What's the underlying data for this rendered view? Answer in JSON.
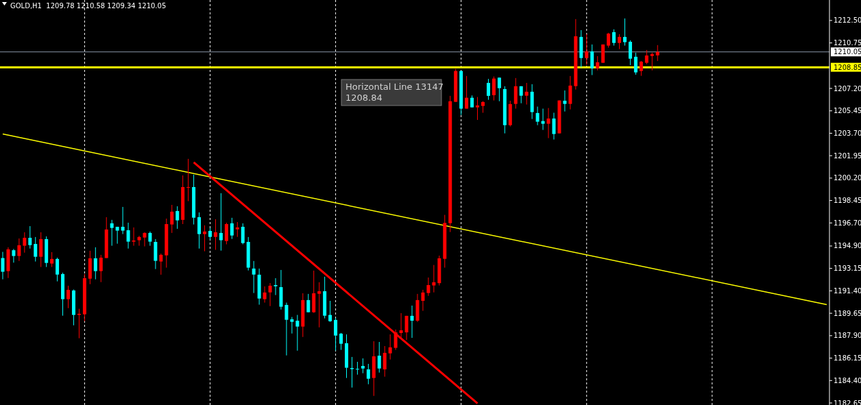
{
  "chart_data": {
    "type": "candlestick",
    "title": "GOLD,H1  1209.78 1210.58 1209.34 1210.05",
    "grid": "x",
    "categories": [
      null,
      null,
      null,
      null,
      null,
      null,
      null,
      null,
      null,
      null,
      null,
      null,
      null,
      null,
      null,
      null,
      null,
      null,
      null,
      null,
      null,
      null,
      null,
      null,
      null,
      null,
      null,
      null,
      null,
      null,
      null,
      null,
      null,
      null,
      null,
      null,
      null,
      null,
      null,
      null,
      null,
      null,
      null,
      null,
      null,
      null,
      null,
      null,
      null,
      null,
      null,
      null,
      null,
      null,
      null,
      null,
      null,
      null,
      null,
      null,
      null,
      null,
      null,
      null,
      null,
      null,
      null,
      null,
      null,
      null,
      null,
      null,
      null,
      null,
      null,
      null,
      null,
      null,
      null,
      null,
      null,
      null,
      null,
      null,
      null,
      null,
      null,
      null,
      null,
      null,
      null,
      null,
      null,
      null,
      null,
      null,
      null,
      null,
      null,
      null,
      null,
      null,
      null,
      null,
      null,
      null,
      null,
      null,
      null,
      null,
      null,
      null,
      null,
      null,
      null,
      null,
      null,
      null,
      null,
      null,
      null,
      null,
      null,
      null,
      null,
      null,
      null,
      null,
      null,
      null,
      null,
      null,
      null,
      null,
      null,
      null,
      null,
      null,
      null,
      null,
      null,
      null,
      null,
      null,
      null,
      null,
      null,
      null,
      null,
      null,
      null,
      null
    ],
    "ylim": [
      1182.49,
      1214.1
    ],
    "yticks": [
      {
        "value": 1182.65,
        "label": "1182.65"
      },
      {
        "value": 1184.4,
        "label": "1184.40"
      },
      {
        "value": 1186.15,
        "label": "1186.15"
      },
      {
        "value": 1187.9,
        "label": "1187.90"
      },
      {
        "value": 1189.65,
        "label": "1189.65"
      },
      {
        "value": 1191.4,
        "label": "1191.40"
      },
      {
        "value": 1193.15,
        "label": "1193.15"
      },
      {
        "value": 1194.9,
        "label": "1194.90"
      },
      {
        "value": 1196.7,
        "label": "1196.70"
      },
      {
        "value": 1198.45,
        "label": "1198.45"
      },
      {
        "value": 1200.2,
        "label": "1200.20"
      },
      {
        "value": 1201.95,
        "label": "1201.95"
      },
      {
        "value": 1203.7,
        "label": "1203.70"
      },
      {
        "value": 1205.45,
        "label": "1205.45"
      },
      {
        "value": 1207.2,
        "label": "1207.20"
      },
      {
        "value": 1210.75,
        "label": "1210.75"
      },
      {
        "value": 1212.5,
        "label": "1212.50"
      }
    ],
    "colors": [
      "#00ffff",
      "#ff0000",
      "#00ffff",
      "#ff0000",
      "#ff0000",
      "#00ffff",
      "#00ffff",
      "#ff0000",
      "#00ffff",
      "#ff0000",
      "#00ffff",
      "#00ffff",
      "#ff0000",
      "#00ffff",
      "#ff0000",
      "#ff0000",
      "#ff0000",
      "#00ffff",
      "#ff0000",
      "#ff0000",
      "#00ffff",
      "#00ffff",
      "#00ffff",
      "#00ffff",
      "#ff0000",
      "#ff0000",
      "#ff0000",
      "#00ffff",
      "#00ffff",
      "#ff0000",
      "#ff0000",
      "#ff0000",
      "#00ffff",
      "#ff0000",
      "#ff0000",
      "#00ffff",
      "#00ffff",
      "#ff0000",
      "#00ffff",
      "#ff0000",
      "#00ffff",
      "#ff0000",
      "#00ffff",
      "#ff0000",
      "#00ffff",
      "#00ffff",
      "#00ffff",
      "#00ffff",
      "#ff0000",
      "#ff0000",
      "#00ffff",
      "#00ffff",
      "#00ffff",
      "#00ffff",
      "#00ffff",
      "#ff0000",
      "#00ffff",
      "#ff0000",
      "#ff0000",
      "#00ffff",
      "#00ffff",
      "#00ffff",
      "#00ffff",
      "#00ffff",
      "#00ffff",
      "#00ffff",
      "#00ffff",
      "#00ffff",
      "#ff0000",
      "#00ffff",
      "#ff0000",
      "#ff0000",
      "#ff0000",
      "#ff0000",
      "#ff0000",
      "#00ffff",
      "#ff0000",
      "#ff0000",
      "#ff0000",
      "#ff0000",
      "#ff0000",
      "#ff0000",
      "#ff0000",
      "#ff0000",
      "#00ffff",
      "#ff0000",
      "#00ffff",
      "#ff0000",
      "#ff0000",
      "#00ffff",
      "#ff0000",
      "#00ffff",
      "#00ffff",
      "#ff0000",
      "#ff0000",
      "#00ffff",
      "#ff0000",
      "#00ffff",
      "#00ffff",
      "#00ffff",
      "#ff0000",
      "#00ffff",
      "#ff0000",
      "#00ffff",
      "#ff0000",
      "#ff0000",
      "#00ffff",
      "#ff0000",
      "#00ffff",
      "#ff0000",
      "#ff0000",
      "#ff0000",
      "#00ffff",
      "#ff0000",
      "#00ffff",
      "#00ffff",
      "#00ffff",
      "#ff0000",
      "#ff0000",
      "#ff0000",
      "#ff0000",
      null,
      null,
      null,
      null,
      null,
      null,
      null,
      null,
      null,
      null,
      null,
      null,
      null,
      null,
      null,
      null,
      null,
      null,
      null,
      null,
      null,
      null,
      null,
      null,
      null,
      null,
      null,
      null,
      null,
      null,
      null
    ],
    "ohlc": [
      [
        1193.96,
        1194.44,
        1192.3,
        1192.89
      ],
      [
        1192.94,
        1194.8,
        1192.4,
        1194.64
      ],
      [
        1194.57,
        1194.67,
        1193.6,
        1194.12
      ],
      [
        1194.12,
        1195.49,
        1193.73,
        1194.96
      ],
      [
        1194.92,
        1195.97,
        1194.38,
        1195.54
      ],
      [
        1195.54,
        1196.45,
        1194.7,
        1194.97
      ],
      [
        1195.06,
        1195.6,
        1193.69,
        1194.06
      ],
      [
        1194.06,
        1195.97,
        1193.26,
        1195.44
      ],
      [
        1195.44,
        1195.65,
        1193.26,
        1193.58
      ],
      [
        1193.53,
        1194.42,
        1193.26,
        1193.89
      ],
      [
        1193.89,
        1193.99,
        1192.14,
        1192.67
      ],
      [
        1192.71,
        1192.82,
        1189.46,
        1190.75
      ],
      [
        1190.75,
        1191.8,
        1190.05,
        1191.48
      ],
      [
        1191.43,
        1191.5,
        1188.71,
        1189.52
      ],
      [
        1189.52,
        1190.0,
        1187.7,
        1189.61
      ],
      [
        1189.57,
        1192.71,
        1189.03,
        1192.39
      ],
      [
        1192.35,
        1194.53,
        1191.92,
        1193.94
      ],
      [
        1193.94,
        1194.8,
        1192.3,
        1192.94
      ],
      [
        1192.94,
        1194.21,
        1192.08,
        1193.99
      ],
      [
        1193.96,
        1197.15,
        1193.96,
        1196.19
      ],
      [
        1196.67,
        1196.94,
        1194.92,
        1196.31
      ],
      [
        1196.4,
        1196.4,
        1195.08,
        1196.1
      ],
      [
        1196.4,
        1197.95,
        1195.83,
        1196.1
      ],
      [
        1196.13,
        1196.72,
        1194.7,
        1195.24
      ],
      [
        1195.24,
        1196.35,
        1194.92,
        1195.33
      ],
      [
        1195.35,
        1195.7,
        1194.92,
        1195.6
      ],
      [
        1195.56,
        1195.97,
        1194.87,
        1195.92
      ],
      [
        1195.92,
        1196.03,
        1194.92,
        1195.24
      ],
      [
        1195.22,
        1195.44,
        1193.1,
        1193.74
      ],
      [
        1193.69,
        1194.31,
        1192.66,
        1194.21
      ],
      [
        1194.17,
        1197.04,
        1193.21,
        1196.61
      ],
      [
        1196.58,
        1198.11,
        1195.92,
        1197.58
      ],
      [
        1197.63,
        1198.0,
        1196.24,
        1196.9
      ],
      [
        1196.94,
        1200.41,
        1196.61,
        1199.5
      ],
      [
        1199.47,
        1201.7,
        1198.4,
        1199.5
      ],
      [
        1199.5,
        1200.47,
        1196.58,
        1197.11
      ],
      [
        1197.15,
        1197.52,
        1194.7,
        1195.83
      ],
      [
        1195.83,
        1196.51,
        1194.49,
        1196.03
      ],
      [
        1196.08,
        1196.29,
        1195.4,
        1195.61
      ],
      [
        1195.61,
        1196.99,
        1194.6,
        1195.97
      ],
      [
        1195.92,
        1199.02,
        1194.54,
        1195.35
      ],
      [
        1195.29,
        1196.72,
        1195.03,
        1196.61
      ],
      [
        1196.67,
        1197.1,
        1195.45,
        1195.72
      ],
      [
        1196.2,
        1196.77,
        1195.61,
        1196.35
      ],
      [
        1196.4,
        1196.67,
        1195.03,
        1195.13
      ],
      [
        1195.22,
        1195.6,
        1192.99,
        1193.21
      ],
      [
        1193.14,
        1193.73,
        1191.23,
        1192.67
      ],
      [
        1192.66,
        1193.14,
        1190.32,
        1190.8
      ],
      [
        1190.75,
        1191.75,
        1190.48,
        1191.27
      ],
      [
        1191.28,
        1192.01,
        1190.21,
        1191.8
      ],
      [
        1191.85,
        1192.39,
        1191.07,
        1191.76
      ],
      [
        1191.69,
        1193.03,
        1189.94,
        1190.16
      ],
      [
        1190.3,
        1190.48,
        1186.36,
        1189.14
      ],
      [
        1189.18,
        1189.36,
        1188.07,
        1188.98
      ],
      [
        1189.07,
        1189.52,
        1186.73,
        1188.61
      ],
      [
        1188.61,
        1191.21,
        1187.8,
        1190.68
      ],
      [
        1190.68,
        1191.16,
        1189.73,
        1189.73
      ],
      [
        1189.73,
        1192.98,
        1189.68,
        1191.21
      ],
      [
        1191.17,
        1192.07,
        1188.55,
        1191.37
      ],
      [
        1191.37,
        1192.5,
        1189.25,
        1189.46
      ],
      [
        1189.52,
        1190.62,
        1188.98,
        1189.03
      ],
      [
        1189.13,
        1189.29,
        1186.73,
        1187.91
      ],
      [
        1188.06,
        1188.11,
        1186.79,
        1187.27
      ],
      [
        1187.31,
        1188.0,
        1184.6,
        1185.4
      ],
      [
        1185.37,
        1186.24,
        1183.85,
        1185.29
      ],
      [
        1185.31,
        1185.86,
        1184.86,
        1185.26
      ],
      [
        1185.54,
        1186.13,
        1184.97,
        1185.34
      ],
      [
        1185.27,
        1185.7,
        1184.11,
        1184.54
      ],
      [
        1184.6,
        1187.47,
        1183.2,
        1186.29
      ],
      [
        1186.34,
        1187.41,
        1185.02,
        1185.34
      ],
      [
        1185.27,
        1187.09,
        1184.7,
        1186.56
      ],
      [
        1186.52,
        1188.0,
        1186.04,
        1186.99
      ],
      [
        1186.95,
        1188.38,
        1186.79,
        1188.16
      ],
      [
        1188.11,
        1189.66,
        1187.72,
        1188.32
      ],
      [
        1188.16,
        1189.45,
        1187.57,
        1189.45
      ],
      [
        1189.45,
        1190.25,
        1187.73,
        1189.07
      ],
      [
        1189.07,
        1191.16,
        1188.97,
        1190.68
      ],
      [
        1190.62,
        1191.48,
        1189.84,
        1191.27
      ],
      [
        1191.23,
        1192.44,
        1191.01,
        1191.85
      ],
      [
        1191.82,
        1193.42,
        1191.28,
        1192.07
      ],
      [
        1192.0,
        1194.15,
        1191.82,
        1193.94
      ],
      [
        1193.9,
        1197.33,
        1193.21,
        1196.7
      ],
      [
        1196.68,
        1206.62,
        1195.99,
        1206.2
      ],
      [
        1206.15,
        1208.72,
        1206.15,
        1208.56
      ],
      [
        1208.56,
        1208.58,
        1205.13,
        1205.62
      ],
      [
        1205.62,
        1208.17,
        1205.62,
        1206.47
      ],
      [
        1206.47,
        1206.65,
        1205.72,
        1205.72
      ],
      [
        1205.72,
        1206.53,
        1204.74,
        1205.87
      ],
      [
        1205.83,
        1206.2,
        1205.3,
        1206.14
      ],
      [
        1207.63,
        1207.94,
        1206.31,
        1206.62
      ],
      [
        1206.67,
        1208.13,
        1206.26,
        1207.97
      ],
      [
        1208.04,
        1208.04,
        1206.2,
        1207.22
      ],
      [
        1207.15,
        1207.37,
        1203.69,
        1204.33
      ],
      [
        1204.33,
        1206.24,
        1204.23,
        1205.98
      ],
      [
        1205.99,
        1208.01,
        1205.62,
        1207.37
      ],
      [
        1207.37,
        1207.37,
        1206.04,
        1206.63
      ],
      [
        1206.63,
        1207.63,
        1205.94,
        1206.94
      ],
      [
        1206.94,
        1207.53,
        1204.81,
        1205.35
      ],
      [
        1205.28,
        1205.78,
        1204.33,
        1204.6
      ],
      [
        1204.65,
        1205.62,
        1203.96,
        1204.44
      ],
      [
        1204.44,
        1205.67,
        1203.32,
        1204.85
      ],
      [
        1204.85,
        1205.3,
        1203.21,
        1203.64
      ],
      [
        1203.69,
        1206.26,
        1203.69,
        1206.26
      ],
      [
        1206.24,
        1207.04,
        1205.4,
        1205.99
      ],
      [
        1205.99,
        1208.17,
        1205.56,
        1207.42
      ],
      [
        1207.38,
        1212.61,
        1207.11,
        1211.27
      ],
      [
        1211.22,
        1211.75,
        1208.83,
        1209.57
      ],
      [
        1209.57,
        1211.43,
        1209.04,
        1210.09
      ],
      [
        1210.09,
        1210.63,
        1208.24,
        1208.77
      ],
      [
        1208.77,
        1209.72,
        1208.61,
        1209.24
      ],
      [
        1209.2,
        1210.63,
        1209.2,
        1210.63
      ],
      [
        1210.54,
        1211.54,
        1210.38,
        1211.48
      ],
      [
        1211.59,
        1211.81,
        1210.54,
        1210.75
      ],
      [
        1210.75,
        1211.43,
        1210.27,
        1211.22
      ],
      [
        1211.22,
        1212.66,
        1210.54,
        1210.81
      ],
      [
        1210.84,
        1210.95,
        1209.02,
        1209.52
      ],
      [
        1209.67,
        1209.99,
        1208.27,
        1208.45
      ],
      [
        1208.56,
        1209.34,
        1208.18,
        1209.29
      ],
      [
        1209.2,
        1210.2,
        1209.09,
        1209.77
      ],
      [
        1209.73,
        1209.99,
        1208.61,
        1209.88
      ],
      [
        1209.78,
        1210.58,
        1209.34,
        1210.05
      ],
      null,
      null,
      null,
      null,
      null,
      null,
      null,
      null,
      null,
      null,
      null,
      null,
      null,
      null,
      null,
      null,
      null,
      null,
      null,
      null,
      null,
      null,
      null,
      null,
      null,
      null,
      null,
      null,
      null,
      null,
      null
    ],
    "series": [
      {
        "type": "line",
        "color": "#ffff00",
        "values": [
          1203.64,
          null,
          null,
          null,
          null,
          null,
          null,
          null,
          null,
          null,
          null,
          null,
          null,
          null,
          null,
          null,
          null,
          null,
          null,
          null,
          null,
          null,
          null,
          null,
          null,
          null,
          null,
          null,
          null,
          null,
          null,
          null,
          null,
          null,
          null,
          null,
          null,
          null,
          null,
          null,
          null,
          null,
          null,
          null,
          null,
          null,
          null,
          null,
          null,
          null,
          null,
          null,
          null,
          null,
          null,
          null,
          null,
          null,
          null,
          null,
          null,
          null,
          null,
          null,
          null,
          null,
          null,
          null,
          null,
          null,
          null,
          null,
          null,
          null,
          null,
          null,
          null,
          null,
          null,
          null,
          null,
          null,
          null,
          null,
          null,
          null,
          null,
          null,
          null,
          null,
          null,
          null,
          null,
          null,
          null,
          null,
          null,
          null,
          null,
          null,
          null,
          null,
          null,
          null,
          null,
          null,
          null,
          null,
          null,
          null,
          null,
          null,
          null,
          null,
          null,
          null,
          null,
          null,
          null,
          null,
          null,
          null,
          null,
          null,
          null,
          null,
          null,
          null,
          null,
          null,
          null,
          null,
          null,
          null,
          null,
          null,
          null,
          null,
          null,
          null,
          null,
          null,
          null,
          null,
          null,
          null,
          null,
          null,
          null,
          null,
          null,
          1190.33
        ]
      },
      {
        "type": "line",
        "color": "#ff0000",
        "values": [
          null,
          null,
          null,
          null,
          null,
          null,
          null,
          null,
          null,
          null,
          null,
          null,
          null,
          null,
          null,
          null,
          null,
          null,
          null,
          null,
          null,
          null,
          null,
          null,
          null,
          null,
          null,
          null,
          null,
          null,
          null,
          null,
          null,
          null,
          null,
          1201.43,
          null,
          null,
          null,
          null,
          null,
          null,
          null,
          null,
          null,
          null,
          null,
          null,
          null,
          null,
          null,
          null,
          null,
          null,
          null,
          null,
          null,
          null,
          null,
          null,
          null,
          null,
          null,
          null,
          null,
          null,
          null,
          null,
          null,
          null,
          null,
          null,
          null,
          null,
          null,
          null,
          null,
          null,
          null,
          null,
          null,
          null,
          null,
          null,
          null,
          null,
          null,
          1182.62,
          null,
          null,
          null,
          null,
          null,
          null,
          null,
          null,
          null,
          null,
          null,
          null,
          null,
          null,
          null,
          null,
          null,
          null,
          null,
          null,
          null,
          null,
          null,
          null,
          null,
          null,
          null,
          null,
          null,
          null,
          null,
          null,
          null,
          null,
          null,
          null,
          null,
          null,
          null,
          null,
          null,
          null,
          null,
          null,
          null,
          null,
          null,
          null,
          null,
          null,
          null,
          null,
          null,
          null,
          null,
          null,
          null,
          null,
          null,
          null,
          null,
          null,
          null,
          null
        ]
      }
    ],
    "ref_lines": [
      {
        "axis": "y",
        "value": 1208.85,
        "label": "1208.85",
        "color": "#ffff00"
      },
      {
        "axis": "y",
        "value": 1210.05,
        "label": "1210.05",
        "color": "#8a97a8"
      }
    ],
    "annotations": [
      "Horizontal Line 13147\n1208.84"
    ]
  }
}
